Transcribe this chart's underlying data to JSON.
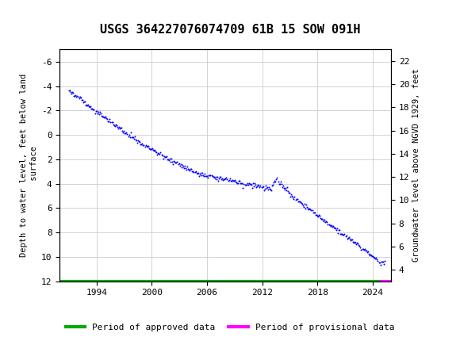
{
  "title": "USGS 364227076074709 61B 15 SOW 091H",
  "ylabel_left": "Depth to water level, feet below land\n surface",
  "ylabel_right": "Groundwater level above NGVD 1929, feet",
  "ylim_left": [
    12,
    -7
  ],
  "ylim_right": [
    3,
    23
  ],
  "yticks_left": [
    12,
    10,
    8,
    6,
    4,
    2,
    0,
    -2,
    -4,
    -6
  ],
  "yticks_right": [
    4,
    6,
    8,
    10,
    12,
    14,
    16,
    18,
    20,
    22
  ],
  "xlim": [
    1990.0,
    2026.0
  ],
  "xticks": [
    1994,
    2000,
    2006,
    2012,
    2018,
    2024
  ],
  "data_color": "#0000FF",
  "approved_color": "#00AA00",
  "provisional_color": "#FF00FF",
  "header_color": "#1a6e37",
  "background_color": "#ffffff",
  "grid_color": "#cccccc",
  "title_fontsize": 11,
  "axis_fontsize": 7.5,
  "tick_fontsize": 8,
  "legend_fontsize": 8,
  "approved_line_y": 12.0,
  "provisional_x_start": 2024.8,
  "provisional_x_end": 2026.0
}
